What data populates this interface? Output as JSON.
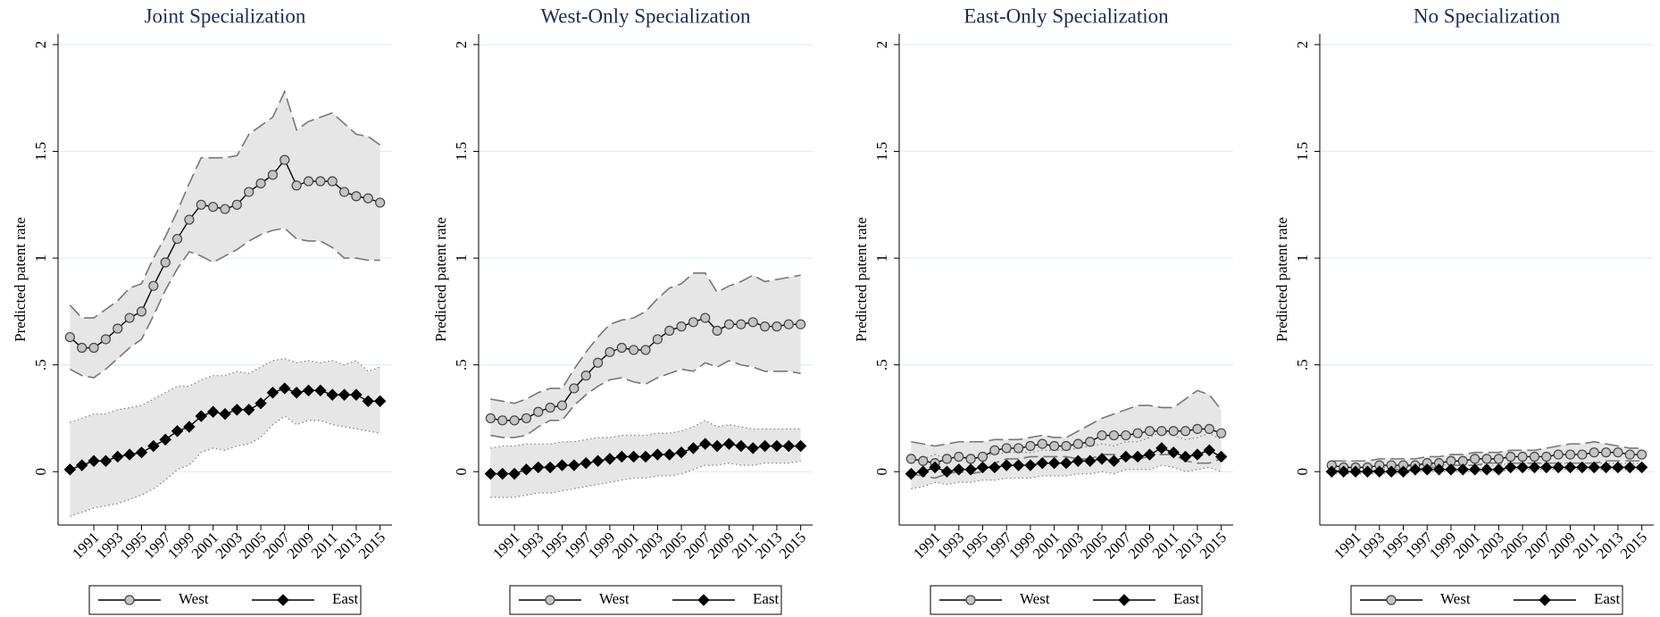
{
  "chart_data": [
    {
      "type": "line",
      "title": "Joint Specialization",
      "ylabel": "Predicted patent rate",
      "x": [
        1989,
        1990,
        1991,
        1992,
        1993,
        1994,
        1995,
        1996,
        1997,
        1998,
        1999,
        2000,
        2001,
        2002,
        2003,
        2004,
        2005,
        2006,
        2007,
        2008,
        2009,
        2010,
        2011,
        2012,
        2013,
        2014,
        2015
      ],
      "xlim": [
        1988,
        2016
      ],
      "xticks": [
        1991,
        1993,
        1995,
        1997,
        1999,
        2001,
        2003,
        2005,
        2007,
        2009,
        2011,
        2013,
        2015
      ],
      "ylim": [
        -0.25,
        2.05
      ],
      "yticks": [
        0,
        {
          "value": 0.5,
          "label": ".5"
        },
        1,
        1.5,
        2
      ],
      "grid": true,
      "series": [
        {
          "name": "West",
          "color": "#c4c4c4",
          "marker": "circle",
          "values": [
            0.63,
            0.58,
            0.58,
            0.62,
            0.67,
            0.72,
            0.75,
            0.87,
            0.98,
            1.09,
            1.18,
            1.25,
            1.24,
            1.23,
            1.25,
            1.31,
            1.35,
            1.39,
            1.46,
            1.34,
            1.36,
            1.36,
            1.36,
            1.31,
            1.29,
            1.28,
            1.26
          ],
          "upper": [
            0.78,
            0.72,
            0.72,
            0.76,
            0.8,
            0.86,
            0.88,
            1.0,
            1.1,
            1.22,
            1.35,
            1.47,
            1.47,
            1.47,
            1.48,
            1.58,
            1.62,
            1.66,
            1.78,
            1.6,
            1.64,
            1.66,
            1.68,
            1.63,
            1.58,
            1.57,
            1.53
          ],
          "lower": [
            0.48,
            0.45,
            0.44,
            0.48,
            0.53,
            0.58,
            0.62,
            0.73,
            0.85,
            0.95,
            1.03,
            1.01,
            0.98,
            1.01,
            1.04,
            1.08,
            1.11,
            1.13,
            1.14,
            1.09,
            1.08,
            1.08,
            1.05,
            1.0,
            1.0,
            0.99,
            0.99
          ]
        },
        {
          "name": "East",
          "color": "#000000",
          "marker": "diamond",
          "values": [
            0.01,
            0.03,
            0.05,
            0.05,
            0.07,
            0.08,
            0.09,
            0.12,
            0.15,
            0.19,
            0.21,
            0.26,
            0.28,
            0.27,
            0.29,
            0.29,
            0.32,
            0.37,
            0.39,
            0.37,
            0.38,
            0.38,
            0.36,
            0.36,
            0.36,
            0.33,
            0.33
          ],
          "upper": [
            0.23,
            0.25,
            0.27,
            0.27,
            0.29,
            0.3,
            0.31,
            0.34,
            0.37,
            0.4,
            0.4,
            0.43,
            0.45,
            0.45,
            0.47,
            0.46,
            0.49,
            0.52,
            0.53,
            0.51,
            0.52,
            0.51,
            0.52,
            0.5,
            0.52,
            0.47,
            0.49
          ],
          "lower": [
            -0.21,
            -0.19,
            -0.17,
            -0.16,
            -0.15,
            -0.13,
            -0.11,
            -0.08,
            -0.04,
            0.01,
            0.03,
            0.09,
            0.11,
            0.1,
            0.12,
            0.13,
            0.16,
            0.22,
            0.26,
            0.22,
            0.24,
            0.24,
            0.22,
            0.21,
            0.2,
            0.19,
            0.18
          ]
        }
      ]
    },
    {
      "type": "line",
      "title": "West-Only Specialization",
      "ylabel": "Predicted patent rate",
      "x": [
        1989,
        1990,
        1991,
        1992,
        1993,
        1994,
        1995,
        1996,
        1997,
        1998,
        1999,
        2000,
        2001,
        2002,
        2003,
        2004,
        2005,
        2006,
        2007,
        2008,
        2009,
        2010,
        2011,
        2012,
        2013,
        2014,
        2015
      ],
      "xlim": [
        1988,
        2016
      ],
      "xticks": [
        1991,
        1993,
        1995,
        1997,
        1999,
        2001,
        2003,
        2005,
        2007,
        2009,
        2011,
        2013,
        2015
      ],
      "ylim": [
        -0.25,
        2.05
      ],
      "yticks": [
        0,
        {
          "value": 0.5,
          "label": ".5"
        },
        1,
        1.5,
        2
      ],
      "grid": true,
      "series": [
        {
          "name": "West",
          "color": "#c4c4c4",
          "marker": "circle",
          "values": [
            0.25,
            0.24,
            0.24,
            0.25,
            0.28,
            0.3,
            0.31,
            0.39,
            0.45,
            0.51,
            0.56,
            0.58,
            0.57,
            0.57,
            0.62,
            0.66,
            0.68,
            0.7,
            0.72,
            0.66,
            0.69,
            0.69,
            0.7,
            0.68,
            0.68,
            0.69,
            0.69
          ],
          "upper": [
            0.34,
            0.33,
            0.32,
            0.34,
            0.37,
            0.39,
            0.39,
            0.48,
            0.56,
            0.63,
            0.69,
            0.71,
            0.72,
            0.75,
            0.81,
            0.86,
            0.88,
            0.93,
            0.93,
            0.84,
            0.87,
            0.89,
            0.92,
            0.89,
            0.9,
            0.91,
            0.92
          ],
          "lower": [
            0.17,
            0.16,
            0.16,
            0.17,
            0.21,
            0.24,
            0.24,
            0.31,
            0.36,
            0.4,
            0.43,
            0.44,
            0.42,
            0.41,
            0.44,
            0.46,
            0.48,
            0.47,
            0.51,
            0.49,
            0.52,
            0.5,
            0.49,
            0.47,
            0.47,
            0.47,
            0.46
          ]
        },
        {
          "name": "East",
          "color": "#000000",
          "marker": "diamond",
          "values": [
            -0.01,
            -0.01,
            -0.01,
            0.01,
            0.02,
            0.02,
            0.03,
            0.03,
            0.04,
            0.05,
            0.06,
            0.07,
            0.07,
            0.07,
            0.08,
            0.08,
            0.09,
            0.11,
            0.13,
            0.12,
            0.13,
            0.12,
            0.11,
            0.12,
            0.12,
            0.12,
            0.12
          ],
          "upper": [
            0.11,
            0.12,
            0.12,
            0.13,
            0.13,
            0.13,
            0.14,
            0.14,
            0.15,
            0.16,
            0.16,
            0.17,
            0.17,
            0.17,
            0.18,
            0.18,
            0.19,
            0.21,
            0.24,
            0.21,
            0.22,
            0.21,
            0.2,
            0.2,
            0.2,
            0.2,
            0.2
          ],
          "lower": [
            -0.12,
            -0.12,
            -0.12,
            -0.11,
            -0.1,
            -0.1,
            -0.09,
            -0.08,
            -0.07,
            -0.06,
            -0.05,
            -0.04,
            -0.03,
            -0.03,
            -0.02,
            -0.02,
            -0.01,
            0.01,
            0.03,
            0.03,
            0.04,
            0.03,
            0.03,
            0.04,
            0.04,
            0.04,
            0.05
          ]
        }
      ]
    },
    {
      "type": "line",
      "title": "East-Only Specialization",
      "ylabel": "Predicted patent rate",
      "x": [
        1989,
        1990,
        1991,
        1992,
        1993,
        1994,
        1995,
        1996,
        1997,
        1998,
        1999,
        2000,
        2001,
        2002,
        2003,
        2004,
        2005,
        2006,
        2007,
        2008,
        2009,
        2010,
        2011,
        2012,
        2013,
        2014,
        2015
      ],
      "xlim": [
        1988,
        2016
      ],
      "xticks": [
        1991,
        1993,
        1995,
        1997,
        1999,
        2001,
        2003,
        2005,
        2007,
        2009,
        2011,
        2013,
        2015
      ],
      "ylim": [
        -0.25,
        2.05
      ],
      "yticks": [
        0,
        {
          "value": 0.5,
          "label": ".5"
        },
        1,
        1.5,
        2
      ],
      "grid": true,
      "series": [
        {
          "name": "West",
          "color": "#c4c4c4",
          "marker": "circle",
          "values": [
            0.06,
            0.05,
            0.04,
            0.06,
            0.07,
            0.06,
            0.07,
            0.1,
            0.11,
            0.11,
            0.12,
            0.13,
            0.12,
            0.12,
            0.13,
            0.14,
            0.17,
            0.17,
            0.17,
            0.18,
            0.19,
            0.19,
            0.19,
            0.19,
            0.2,
            0.2,
            0.18
          ],
          "upper": [
            0.14,
            0.13,
            0.12,
            0.13,
            0.14,
            0.14,
            0.14,
            0.15,
            0.15,
            0.15,
            0.16,
            0.17,
            0.16,
            0.16,
            0.19,
            0.22,
            0.25,
            0.27,
            0.29,
            0.31,
            0.31,
            0.3,
            0.3,
            0.34,
            0.38,
            0.36,
            0.29
          ],
          "lower": [
            -0.01,
            -0.02,
            -0.03,
            -0.01,
            0,
            -0.01,
            0,
            0.04,
            0.06,
            0.06,
            0.07,
            0.07,
            0.07,
            0.07,
            0.06,
            0.06,
            0.08,
            0.08,
            0.07,
            0.06,
            0.07,
            0.08,
            0.08,
            0.05,
            0.04,
            0.04,
            0.06
          ]
        },
        {
          "name": "East",
          "color": "#000000",
          "marker": "diamond",
          "values": [
            -0.01,
            0,
            0.02,
            0,
            0.01,
            0.01,
            0.02,
            0.02,
            0.03,
            0.03,
            0.03,
            0.04,
            0.04,
            0.04,
            0.05,
            0.05,
            0.06,
            0.05,
            0.07,
            0.07,
            0.08,
            0.11,
            0.09,
            0.07,
            0.08,
            0.1,
            0.07
          ],
          "upper": [
            0.05,
            0.06,
            0.08,
            0.06,
            0.07,
            0.07,
            0.08,
            0.08,
            0.09,
            0.09,
            0.09,
            0.1,
            0.1,
            0.1,
            0.11,
            0.12,
            0.13,
            0.12,
            0.14,
            0.14,
            0.16,
            0.19,
            0.17,
            0.15,
            0.16,
            0.18,
            0.15
          ],
          "lower": [
            -0.08,
            -0.07,
            -0.05,
            -0.06,
            -0.05,
            -0.05,
            -0.04,
            -0.04,
            -0.03,
            -0.03,
            -0.03,
            -0.02,
            -0.02,
            -0.02,
            -0.01,
            -0.01,
            0,
            -0.01,
            0.01,
            0.01,
            0.01,
            0.03,
            0.02,
            0,
            0.01,
            0.02,
            0
          ]
        }
      ]
    },
    {
      "type": "line",
      "title": "No Specialization",
      "ylabel": "Predicted patent rate",
      "x": [
        1989,
        1990,
        1991,
        1992,
        1993,
        1994,
        1995,
        1996,
        1997,
        1998,
        1999,
        2000,
        2001,
        2002,
        2003,
        2004,
        2005,
        2006,
        2007,
        2008,
        2009,
        2010,
        2011,
        2012,
        2013,
        2014,
        2015
      ],
      "xlim": [
        1988,
        2016
      ],
      "xticks": [
        1991,
        1993,
        1995,
        1997,
        1999,
        2001,
        2003,
        2005,
        2007,
        2009,
        2011,
        2013,
        2015
      ],
      "ylim": [
        -0.25,
        2.05
      ],
      "yticks": [
        0,
        {
          "value": 0.5,
          "label": ".5"
        },
        1,
        1.5,
        2
      ],
      "grid": true,
      "series": [
        {
          "name": "West",
          "color": "#c4c4c4",
          "marker": "circle",
          "values": [
            0.03,
            0.02,
            0.02,
            0.02,
            0.03,
            0.03,
            0.03,
            0.03,
            0.04,
            0.04,
            0.05,
            0.05,
            0.06,
            0.06,
            0.06,
            0.07,
            0.07,
            0.07,
            0.07,
            0.08,
            0.08,
            0.08,
            0.09,
            0.09,
            0.09,
            0.08,
            0.08
          ],
          "upper": [
            0.05,
            0.05,
            0.05,
            0.05,
            0.06,
            0.06,
            0.06,
            0.06,
            0.07,
            0.07,
            0.08,
            0.08,
            0.09,
            0.09,
            0.09,
            0.1,
            0.1,
            0.1,
            0.11,
            0.12,
            0.13,
            0.13,
            0.14,
            0.13,
            0.12,
            0.11,
            0.11
          ],
          "lower": [
            0.01,
            0,
            0,
            0,
            0.01,
            0.01,
            0.01,
            0.01,
            0.02,
            0.02,
            0.03,
            0.03,
            0.03,
            0.04,
            0.04,
            0.04,
            0.04,
            0.04,
            0.04,
            0.04,
            0.04,
            0.04,
            0.04,
            0.05,
            0.05,
            0.05,
            0.05
          ]
        },
        {
          "name": "East",
          "color": "#000000",
          "marker": "diamond",
          "values": [
            0,
            0,
            0,
            0,
            0,
            0,
            0,
            0.01,
            0.01,
            0.01,
            0.01,
            0.01,
            0.01,
            0.01,
            0.01,
            0.02,
            0.02,
            0.02,
            0.02,
            0.02,
            0.02,
            0.02,
            0.02,
            0.02,
            0.02,
            0.02,
            0.02
          ],
          "upper": [
            0.02,
            0.02,
            0.02,
            0.02,
            0.02,
            0.02,
            0.02,
            0.03,
            0.03,
            0.03,
            0.03,
            0.03,
            0.03,
            0.03,
            0.03,
            0.04,
            0.04,
            0.04,
            0.04,
            0.04,
            0.04,
            0.04,
            0.04,
            0.04,
            0.04,
            0.04,
            0.04
          ],
          "lower": [
            -0.01,
            -0.01,
            -0.01,
            -0.01,
            -0.01,
            -0.01,
            -0.01,
            0,
            0,
            0,
            0,
            0,
            0,
            0,
            0,
            0.01,
            0.01,
            0.01,
            0.01,
            0.01,
            0.01,
            0.01,
            0.01,
            0.01,
            0.01,
            0.01,
            0.01
          ]
        }
      ]
    }
  ]
}
